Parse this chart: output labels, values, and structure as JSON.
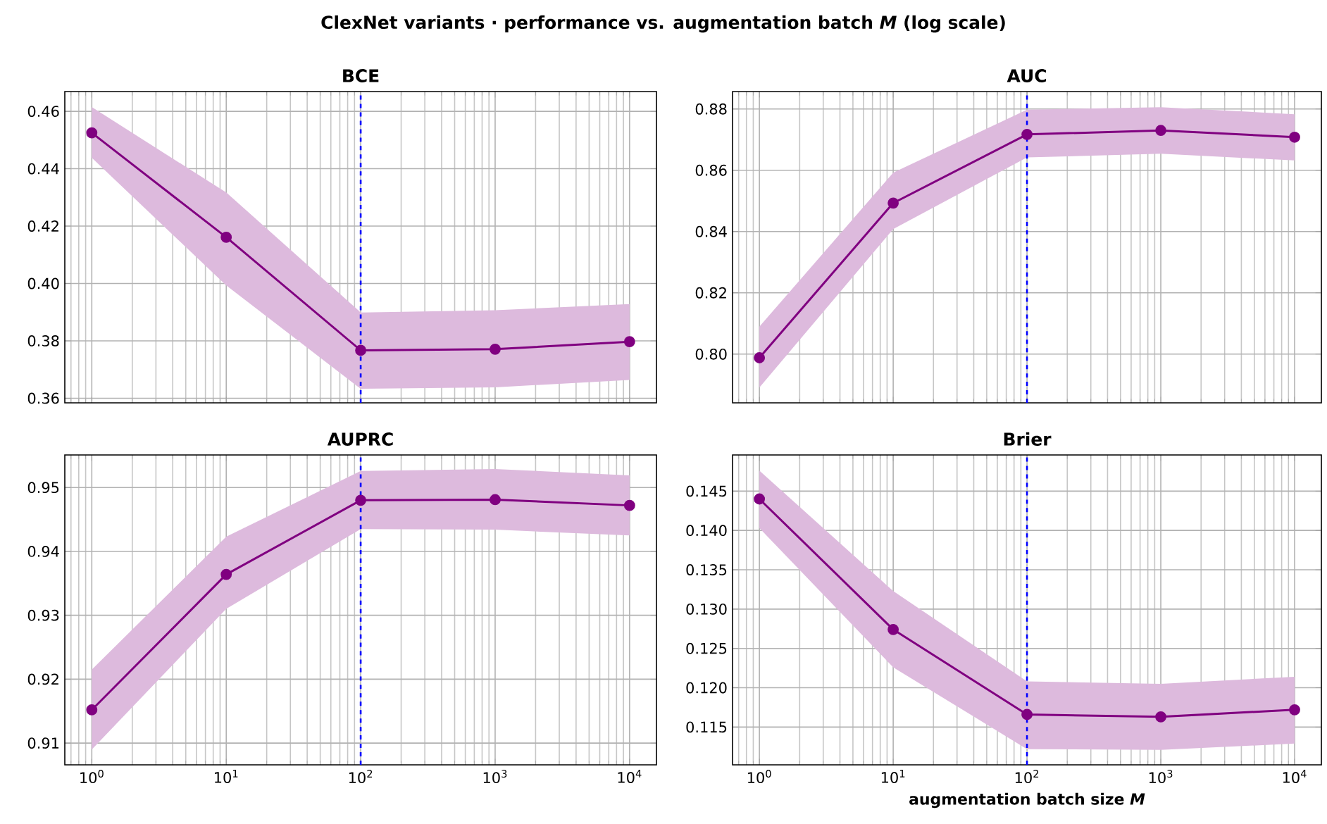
{
  "chart_data": [
    {
      "type": "line",
      "title": "BCE",
      "annotations": [
        "ClexNet variants · performance vs. augmentation batch *M* (log scale)"
      ],
      "x": [
        1,
        10,
        100,
        1000,
        10000
      ],
      "series": [
        {
          "color": "#800080",
          "values": [
            0.4525,
            0.4161,
            0.3767,
            0.3771,
            0.3797
          ],
          "lower": [
            0.4438,
            0.3993,
            0.3633,
            0.3638,
            0.3664
          ],
          "upper": [
            0.4615,
            0.4317,
            0.3899,
            0.3907,
            0.3928
          ]
        }
      ],
      "xlim": [
        0.63,
        15849
      ],
      "ylim": [
        0.3584,
        0.4669
      ],
      "xticks": [
        {
          "value": 1,
          "label": null
        },
        {
          "value": 10,
          "label": null
        },
        {
          "value": 100,
          "label": null
        },
        {
          "value": 1000,
          "label": null
        },
        {
          "value": 10000,
          "label": null
        }
      ],
      "yticks": [
        {
          "value": 0.36,
          "label": "0.36"
        },
        {
          "value": 0.38,
          "label": "0.38"
        },
        {
          "value": 0.4,
          "label": "0.40"
        },
        {
          "value": 0.42,
          "label": "0.42"
        },
        {
          "value": 0.44,
          "label": "0.44"
        },
        {
          "value": 0.46,
          "label": "0.46"
        }
      ],
      "log": "x",
      "grid": true,
      "marker": "circle",
      "line_style": "solid",
      "tick_labels": "y",
      "ref_lines": [
        {
          "axis": "x",
          "value": 100,
          "color": "#0000ff",
          "line_style": "dashed"
        }
      ]
    },
    {
      "type": "line",
      "title": "AUC",
      "x": [
        1,
        10,
        100,
        1000,
        10000
      ],
      "series": [
        {
          "color": "#800080",
          "values": [
            0.7988,
            0.8493,
            0.8717,
            0.873,
            0.8708
          ],
          "lower": [
            0.7891,
            0.8408,
            0.8642,
            0.8654,
            0.8632
          ],
          "upper": [
            0.809,
            0.8592,
            0.8798,
            0.8806,
            0.8783
          ]
        }
      ],
      "xlim": [
        0.63,
        15849
      ],
      "ylim": [
        0.7841,
        0.8857
      ],
      "xticks": [
        {
          "value": 1,
          "label": null
        },
        {
          "value": 10,
          "label": null
        },
        {
          "value": 100,
          "label": null
        },
        {
          "value": 1000,
          "label": null
        },
        {
          "value": 10000,
          "label": null
        }
      ],
      "yticks": [
        {
          "value": 0.8,
          "label": "0.80"
        },
        {
          "value": 0.82,
          "label": "0.82"
        },
        {
          "value": 0.84,
          "label": "0.84"
        },
        {
          "value": 0.86,
          "label": "0.86"
        },
        {
          "value": 0.88,
          "label": "0.88"
        }
      ],
      "log": "x",
      "grid": true,
      "marker": "circle",
      "line_style": "solid",
      "tick_labels": "y",
      "ref_lines": [
        {
          "axis": "x",
          "value": 100,
          "color": "#0000ff",
          "line_style": "dashed"
        }
      ]
    },
    {
      "type": "line",
      "title": "AUPRC",
      "x": [
        1,
        10,
        100,
        1000,
        10000
      ],
      "series": [
        {
          "color": "#800080",
          "values": [
            0.9152,
            0.9364,
            0.948,
            0.9481,
            0.9472
          ],
          "lower": [
            0.909,
            0.931,
            0.9435,
            0.9434,
            0.9425
          ],
          "upper": [
            0.9215,
            0.9423,
            0.9526,
            0.9529,
            0.9519
          ]
        }
      ],
      "xlim": [
        0.63,
        15849
      ],
      "ylim": [
        0.9066,
        0.9551
      ],
      "xticks": [
        {
          "value": 1,
          "label": "10$^{0}$"
        },
        {
          "value": 10,
          "label": "10$^{1}$"
        },
        {
          "value": 100,
          "label": "10$^{2}$"
        },
        {
          "value": 1000,
          "label": "10$^{3}$"
        },
        {
          "value": 10000,
          "label": "10$^{4}$"
        }
      ],
      "yticks": [
        {
          "value": 0.91,
          "label": "0.91"
        },
        {
          "value": 0.92,
          "label": "0.92"
        },
        {
          "value": 0.93,
          "label": "0.93"
        },
        {
          "value": 0.94,
          "label": "0.94"
        },
        {
          "value": 0.95,
          "label": "0.95"
        }
      ],
      "log": "x",
      "grid": true,
      "marker": "circle",
      "line_style": "solid",
      "ref_lines": [
        {
          "axis": "x",
          "value": 100,
          "color": "#0000ff",
          "line_style": "dashed"
        }
      ]
    },
    {
      "type": "line",
      "title": "Brier",
      "xlabel": "augmentation batch size *M*",
      "x": [
        1,
        10,
        100,
        1000,
        10000
      ],
      "series": [
        {
          "color": "#800080",
          "values": [
            0.144,
            0.1274,
            0.1166,
            0.1163,
            0.1172
          ],
          "lower": [
            0.1403,
            0.1226,
            0.1122,
            0.1121,
            0.1129
          ],
          "upper": [
            0.1476,
            0.1323,
            0.1208,
            0.1205,
            0.1214
          ]
        }
      ],
      "xlim": [
        0.63,
        15849
      ],
      "ylim": [
        0.1102,
        0.1496
      ],
      "xticks": [
        {
          "value": 1,
          "label": "10$^{0}$"
        },
        {
          "value": 10,
          "label": "10$^{1}$"
        },
        {
          "value": 100,
          "label": "10$^{2}$"
        },
        {
          "value": 1000,
          "label": "10$^{3}$"
        },
        {
          "value": 10000,
          "label": "10$^{4}$"
        }
      ],
      "yticks": [
        {
          "value": 0.115,
          "label": "0.115"
        },
        {
          "value": 0.12,
          "label": "0.120"
        },
        {
          "value": 0.125,
          "label": "0.125"
        },
        {
          "value": 0.13,
          "label": "0.130"
        },
        {
          "value": 0.135,
          "label": "0.135"
        },
        {
          "value": 0.14,
          "label": "0.140"
        },
        {
          "value": 0.145,
          "label": "0.145"
        }
      ],
      "log": "x",
      "grid": true,
      "marker": "circle",
      "line_style": "solid",
      "ref_lines": [
        {
          "axis": "x",
          "value": 100,
          "color": "#0000ff",
          "line_style": "dashed"
        }
      ]
    }
  ]
}
